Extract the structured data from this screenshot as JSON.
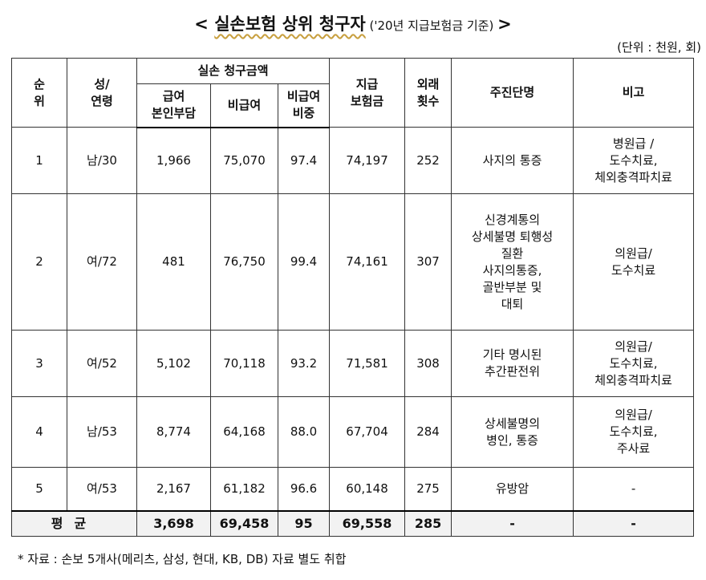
{
  "title": {
    "prefix": "< ",
    "main": "실손보험 상위 청구자",
    "sub": " ('20년 지급보험금 기준) ",
    "suffix": ">"
  },
  "unit": "(단위 : 천원, 회)",
  "headers": {
    "rank": [
      "순",
      "위"
    ],
    "sex_age": [
      "성/",
      "연령"
    ],
    "claim_group": "실손 청구금액",
    "covered_self": [
      "급여",
      "본인부담"
    ],
    "noncovered": "비급여",
    "noncovered_ratio": [
      "비급여",
      "비중"
    ],
    "paid": [
      "지급",
      "보험금"
    ],
    "visits": [
      "외래",
      "횟수"
    ],
    "diagnosis": "주진단명",
    "remarks": "비고"
  },
  "rows": [
    {
      "rank": "1",
      "sex_age": "남/30",
      "covered_self": "1,966",
      "noncovered": "75,070",
      "ratio": "97.4",
      "paid": "74,197",
      "visits": "252",
      "diagnosis": [
        "사지의 통증"
      ],
      "remarks": [
        "병원급 /",
        "도수치료,",
        "체외충격파치료"
      ]
    },
    {
      "rank": "2",
      "sex_age": "여/72",
      "covered_self": "481",
      "noncovered": "76,750",
      "ratio": "99.4",
      "paid": "74,161",
      "visits": "307",
      "diagnosis": [
        "신경계통의",
        "상세불명 퇴행성",
        "질환",
        "사지의통증,",
        "골반부분 및",
        "대퇴"
      ],
      "remarks": [
        "의원급/",
        "도수치료"
      ]
    },
    {
      "rank": "3",
      "sex_age": "여/52",
      "covered_self": "5,102",
      "noncovered": "70,118",
      "ratio": "93.2",
      "paid": "71,581",
      "visits": "308",
      "diagnosis": [
        "기타 명시된",
        "추간판전위"
      ],
      "remarks": [
        "의원급/",
        "도수치료,",
        "체외충격파치료"
      ]
    },
    {
      "rank": "4",
      "sex_age": "남/53",
      "covered_self": "8,774",
      "noncovered": "64,168",
      "ratio": "88.0",
      "paid": "67,704",
      "visits": "284",
      "diagnosis": [
        "상세불명의",
        "병인, 통증"
      ],
      "remarks": [
        "의원급/",
        "도수치료,",
        "주사료"
      ]
    },
    {
      "rank": "5",
      "sex_age": "여/53",
      "covered_self": "2,167",
      "noncovered": "61,182",
      "ratio": "96.6",
      "paid": "60,148",
      "visits": "275",
      "diagnosis": [
        "유방암"
      ],
      "remarks": [
        "-"
      ]
    }
  ],
  "average": {
    "label": "평균",
    "covered_self": "3,698",
    "noncovered": "69,458",
    "ratio": "95",
    "paid": "69,558",
    "visits": "285",
    "diagnosis": "-",
    "remarks": "-"
  },
  "footnote": "* 자료 : 손보 5개사(메리츠, 삼성, 현대, KB, DB) 자료 별도 취합"
}
